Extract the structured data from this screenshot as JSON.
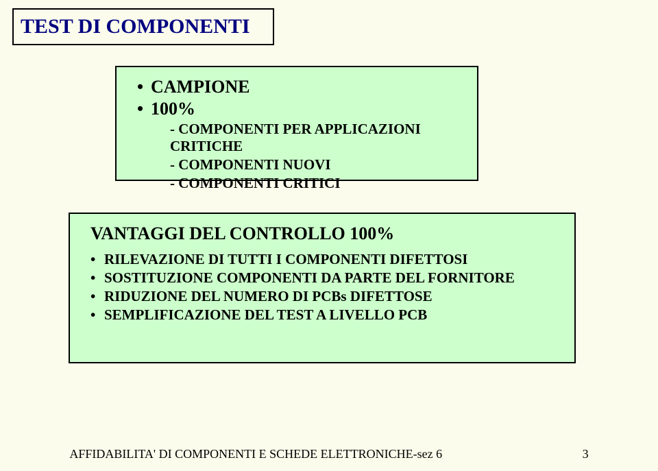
{
  "title": "TEST DI COMPONENTI",
  "box1": {
    "heading1": "CAMPIONE",
    "heading2": "100%",
    "sub1": "- COMPONENTI PER APPLICAZIONI CRITICHE",
    "sub2": "- COMPONENTI NUOVI",
    "sub3": "- COMPONENTI CRITICI"
  },
  "box2": {
    "title": "VANTAGGI DEL CONTROLLO 100%",
    "item1": "RILEVAZIONE DI TUTTI I COMPONENTI DIFETTOSI",
    "item2": "SOSTITUZIONE COMPONENTI DA PARTE DEL FORNITORE",
    "item3": "RIDUZIONE DEL NUMERO DI PCBs DIFETTOSE",
    "item4": "SEMPLIFICAZIONE DEL TEST A LIVELLO PCB"
  },
  "footer": {
    "text": "AFFIDABILITA' DI COMPONENTI E SCHEDE ELETTRONICHE-sez 6",
    "page": "3"
  },
  "colors": {
    "page_bg": "#fcfcec",
    "box_bg": "#ccffcc",
    "border": "#000000",
    "title_color": "#000080",
    "text_color": "#000000"
  }
}
